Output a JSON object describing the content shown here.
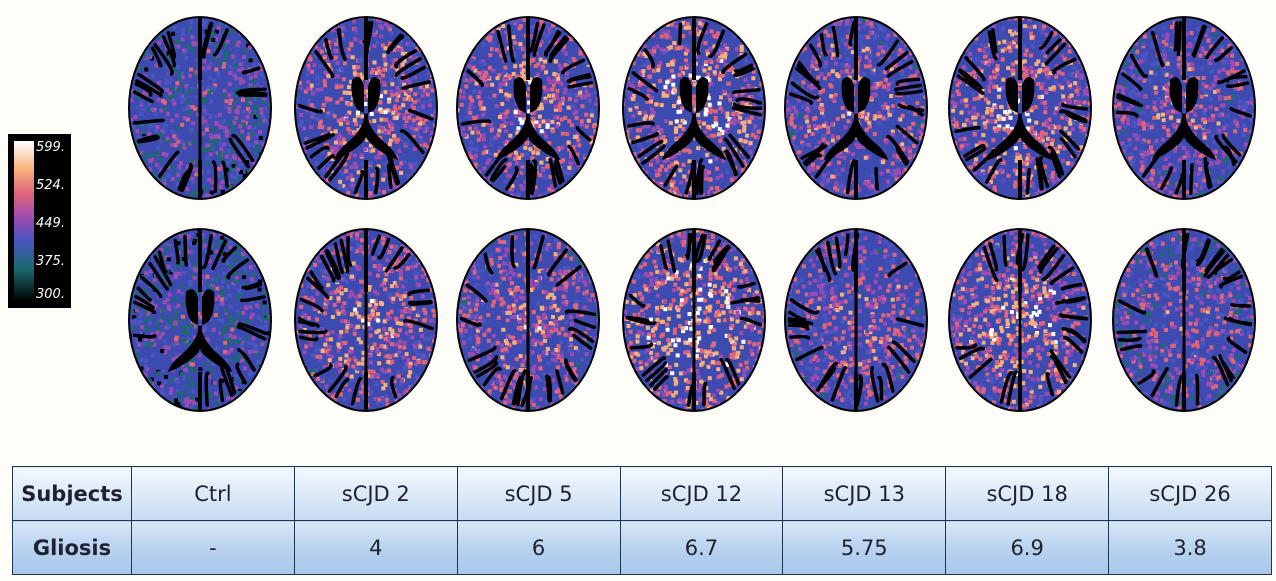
{
  "colorbar": {
    "ticks": [
      "599.",
      "524.",
      "449.",
      "375.",
      "300."
    ]
  },
  "brains": {
    "row_top": [
      {
        "subject": "Ctrl",
        "ventricles": false,
        "intensity": 0.45
      },
      {
        "subject": "sCJD 2",
        "ventricles": true,
        "intensity": 0.7
      },
      {
        "subject": "sCJD 5",
        "ventricles": true,
        "intensity": 0.72
      },
      {
        "subject": "sCJD 12",
        "ventricles": true,
        "intensity": 0.78
      },
      {
        "subject": "sCJD 13",
        "ventricles": true,
        "intensity": 0.66
      },
      {
        "subject": "sCJD 18",
        "ventricles": true,
        "intensity": 0.74
      },
      {
        "subject": "sCJD 26",
        "ventricles": true,
        "intensity": 0.6
      }
    ],
    "row_bottom": [
      {
        "subject": "Ctrl",
        "ventricles": true,
        "intensity": 0.42
      },
      {
        "subject": "sCJD 2",
        "ventricles": false,
        "intensity": 0.7
      },
      {
        "subject": "sCJD 5",
        "ventricles": false,
        "intensity": 0.66
      },
      {
        "subject": "sCJD 12",
        "ventricles": false,
        "intensity": 0.8
      },
      {
        "subject": "sCJD 13",
        "ventricles": false,
        "intensity": 0.62
      },
      {
        "subject": "sCJD 18",
        "ventricles": false,
        "intensity": 0.76
      },
      {
        "subject": "sCJD 26",
        "ventricles": false,
        "intensity": 0.55
      }
    ]
  },
  "table": {
    "header_subjects": "Subjects",
    "header_gliosis": "Gliosis",
    "subjects": [
      "Ctrl",
      "sCJD 2",
      "sCJD 5",
      "sCJD 12",
      "sCJD 13",
      "sCJD 18",
      "sCJD 26"
    ],
    "gliosis": [
      "-",
      "4",
      "6",
      "6.7",
      "5.75",
      "6.9",
      "3.8"
    ]
  },
  "colors": {
    "table_border": "#1f3550",
    "palette": [
      "#000000",
      "#1b6a6c",
      "#4b55c2",
      "#9c4bb0",
      "#e0647c",
      "#f7b07a",
      "#ffffff"
    ]
  }
}
